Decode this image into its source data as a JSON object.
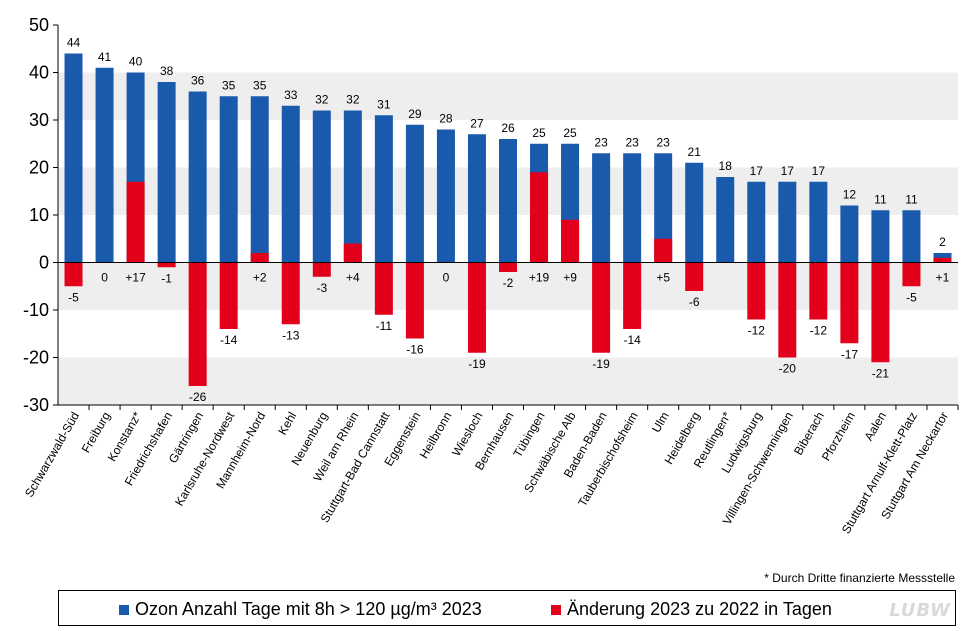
{
  "chart_data": {
    "type": "bar",
    "categories": [
      "Schwarzwald-Süd",
      "Freiburg",
      "Konstanz*",
      "Friedrichshafen",
      "Gärtringen",
      "Karlsruhe-Nordwest",
      "Mannheim-Nord",
      "Kehl",
      "Neuenburg",
      "Weil am Rhein",
      "Stuttgart-Bad Cannstatt",
      "Eggenstein",
      "Heilbronn",
      "Wiesloch",
      "Bernhausen",
      "Tübingen",
      "Schwäbische Alb",
      "Baden-Baden",
      "Tauberbischofsheim",
      "Ulm",
      "Heidelberg",
      "Reutlingen*",
      "Ludwigsburg",
      "Villingen-Schwenningen",
      "Biberach",
      "Pforzheim",
      "Aalen",
      "Stuttgart Arnulf-Klett-Platz",
      "Stuttgart Am Neckartor"
    ],
    "series": [
      {
        "name": "Ozon Anzahl Tage mit 8h > 120 µg/m³ 2023",
        "color": "#1a5aad",
        "values": [
          44,
          41,
          40,
          38,
          36,
          35,
          35,
          33,
          32,
          32,
          31,
          29,
          28,
          27,
          26,
          25,
          25,
          23,
          23,
          23,
          21,
          18,
          17,
          17,
          17,
          12,
          11,
          11,
          2
        ],
        "labels": [
          "44",
          "41",
          "40",
          "38",
          "36",
          "35",
          "35",
          "33",
          "32",
          "32",
          "31",
          "29",
          "28",
          "27",
          "26",
          "25",
          "25",
          "23",
          "23",
          "23",
          "21",
          "18",
          "17",
          "17",
          "17",
          "12",
          "11",
          "11",
          "2"
        ]
      },
      {
        "name": "Änderung 2023 zu 2022 in Tagen",
        "color": "#e2001a",
        "values": [
          -5,
          0,
          17,
          -1,
          -26,
          -14,
          2,
          -13,
          -3,
          4,
          -11,
          -16,
          0,
          -19,
          -2,
          19,
          9,
          -19,
          -14,
          5,
          -6,
          null,
          -12,
          -20,
          -12,
          -17,
          -21,
          -5,
          1
        ],
        "labels": [
          "-5",
          "0",
          "+17",
          "-1",
          "-26",
          "-14",
          "+2",
          "-13",
          "-3",
          "+4",
          "-11",
          "-16",
          "0",
          "-19",
          "-2",
          "+19",
          "+9",
          "-19",
          "-14",
          "+5",
          "-6",
          "",
          "-12",
          "-20",
          "-12",
          "-17",
          "-21",
          "-5",
          "+1"
        ]
      }
    ],
    "yticks": [
      "50",
      "40",
      "30",
      "20",
      "10",
      "0",
      "-10",
      "-20",
      "-30"
    ],
    "ylim": [
      -30,
      50
    ],
    "title": "",
    "xlabel": "",
    "ylabel": ""
  },
  "footnote": "* Durch Dritte finanzierte Messstelle",
  "legend": {
    "blue_label": "Ozon Anzahl Tage mit 8h > 120 µg/m³ 2023",
    "red_label": "Änderung 2023 zu 2022 in Tagen"
  },
  "logo_text": "LUBW"
}
